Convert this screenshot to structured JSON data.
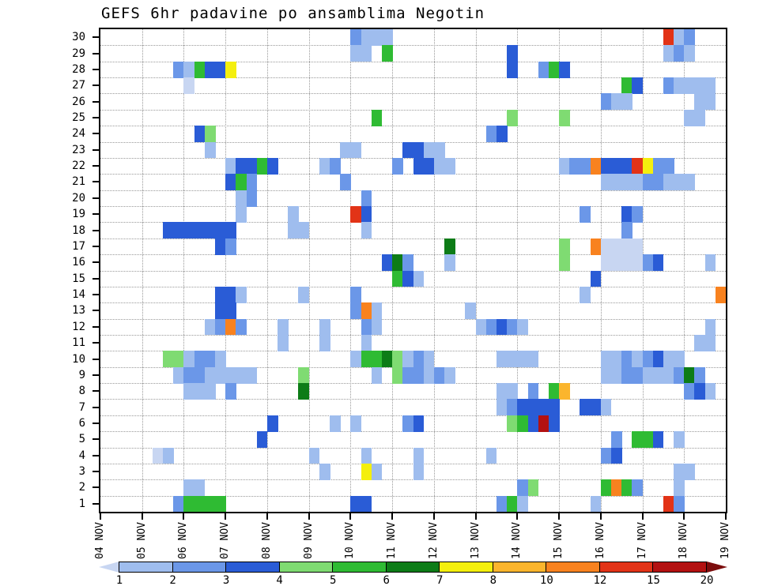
{
  "title": "GEFS 6hr padavine po ansamblima Negotin",
  "chart_data": {
    "type": "heatmap",
    "title": "GEFS 6hr padavine po ansamblima Negotin",
    "rows": 30,
    "columns": 60,
    "steps_per_day": 4,
    "x_labels": [
      "04 NOV",
      "05 NOV",
      "06 NOV",
      "07 NOV",
      "08 NOV",
      "09 NOV",
      "10 NOV",
      "11 NOV",
      "12 NOV",
      "13 NOV",
      "14 NOV",
      "15 NOV",
      "16 NOV",
      "17 NOV",
      "18 NOV",
      "19 NOV"
    ],
    "y_labels": [
      "30",
      "29",
      "28",
      "27",
      "26",
      "25",
      "24",
      "23",
      "22",
      "21",
      "20",
      "19",
      "18",
      "17",
      "16",
      "15",
      "14",
      "13",
      "12",
      "11",
      "10",
      "9",
      "8",
      "7",
      "6",
      "5",
      "4",
      "3",
      "2",
      "1"
    ],
    "legend": {
      "labels": [
        "1",
        "2",
        "3",
        "4",
        "5",
        "6",
        "7",
        "8",
        "10",
        "12",
        "15",
        "20"
      ],
      "palette": [
        "#c8d6f2",
        "#9fbdee",
        "#6b97e8",
        "#2a5cd6",
        "#7fdb72",
        "#2fbb33",
        "#0d7c17",
        "#f4ef0e",
        "#fbb52d",
        "#f8821f",
        "#e23317",
        "#b31111",
        "#7c0d0d"
      ],
      "grid_color": "#999999",
      "frame_color": "#000000"
    },
    "cells": [
      [
        30,
        24,
        2
      ],
      [
        30,
        25,
        1
      ],
      [
        30,
        26,
        1
      ],
      [
        30,
        27,
        1
      ],
      [
        30,
        54,
        10
      ],
      [
        30,
        55,
        1
      ],
      [
        30,
        56,
        2
      ],
      [
        29,
        24,
        1
      ],
      [
        29,
        25,
        1
      ],
      [
        29,
        27,
        5
      ],
      [
        29,
        39,
        3
      ],
      [
        29,
        54,
        1
      ],
      [
        29,
        55,
        2
      ],
      [
        29,
        56,
        1
      ],
      [
        28,
        7,
        2
      ],
      [
        28,
        8,
        1
      ],
      [
        28,
        9,
        5
      ],
      [
        28,
        10,
        3
      ],
      [
        28,
        11,
        3
      ],
      [
        28,
        12,
        7
      ],
      [
        28,
        39,
        3
      ],
      [
        28,
        42,
        2
      ],
      [
        28,
        43,
        5
      ],
      [
        28,
        44,
        3
      ],
      [
        27,
        8,
        0
      ],
      [
        27,
        50,
        5
      ],
      [
        27,
        51,
        3
      ],
      [
        27,
        54,
        2
      ],
      [
        27,
        55,
        1
      ],
      [
        27,
        56,
        1
      ],
      [
        27,
        57,
        1
      ],
      [
        27,
        58,
        1
      ],
      [
        26,
        48,
        2
      ],
      [
        26,
        49,
        1
      ],
      [
        26,
        50,
        1
      ],
      [
        26,
        57,
        1
      ],
      [
        26,
        58,
        1
      ],
      [
        25,
        26,
        5
      ],
      [
        25,
        39,
        4
      ],
      [
        25,
        44,
        4
      ],
      [
        25,
        56,
        1
      ],
      [
        25,
        57,
        1
      ],
      [
        24,
        9,
        3
      ],
      [
        24,
        10,
        4
      ],
      [
        24,
        37,
        2
      ],
      [
        24,
        38,
        3
      ],
      [
        23,
        10,
        1
      ],
      [
        23,
        23,
        1
      ],
      [
        23,
        24,
        1
      ],
      [
        23,
        29,
        3
      ],
      [
        23,
        30,
        3
      ],
      [
        23,
        31,
        1
      ],
      [
        23,
        32,
        1
      ],
      [
        22,
        12,
        1
      ],
      [
        22,
        13,
        3
      ],
      [
        22,
        14,
        3
      ],
      [
        22,
        15,
        5
      ],
      [
        22,
        16,
        3
      ],
      [
        22,
        21,
        1
      ],
      [
        22,
        22,
        2
      ],
      [
        22,
        28,
        2
      ],
      [
        22,
        30,
        3
      ],
      [
        22,
        31,
        3
      ],
      [
        22,
        32,
        1
      ],
      [
        22,
        33,
        1
      ],
      [
        22,
        44,
        1
      ],
      [
        22,
        45,
        2
      ],
      [
        22,
        46,
        2
      ],
      [
        22,
        47,
        9
      ],
      [
        22,
        48,
        3
      ],
      [
        22,
        49,
        3
      ],
      [
        22,
        50,
        3
      ],
      [
        22,
        51,
        10
      ],
      [
        22,
        52,
        7
      ],
      [
        22,
        53,
        2
      ],
      [
        22,
        54,
        2
      ],
      [
        21,
        12,
        3
      ],
      [
        21,
        13,
        5
      ],
      [
        21,
        14,
        2
      ],
      [
        21,
        23,
        2
      ],
      [
        21,
        48,
        1
      ],
      [
        21,
        49,
        1
      ],
      [
        21,
        50,
        1
      ],
      [
        21,
        51,
        1
      ],
      [
        21,
        52,
        2
      ],
      [
        21,
        53,
        2
      ],
      [
        21,
        54,
        1
      ],
      [
        21,
        55,
        1
      ],
      [
        21,
        56,
        1
      ],
      [
        20,
        13,
        1
      ],
      [
        20,
        14,
        2
      ],
      [
        20,
        25,
        2
      ],
      [
        19,
        13,
        1
      ],
      [
        19,
        18,
        1
      ],
      [
        19,
        24,
        10
      ],
      [
        19,
        25,
        3
      ],
      [
        19,
        46,
        2
      ],
      [
        19,
        50,
        3
      ],
      [
        19,
        51,
        2
      ],
      [
        18,
        6,
        3
      ],
      [
        18,
        7,
        3
      ],
      [
        18,
        8,
        3
      ],
      [
        18,
        9,
        3
      ],
      [
        18,
        10,
        3
      ],
      [
        18,
        11,
        3
      ],
      [
        18,
        12,
        3
      ],
      [
        18,
        18,
        1
      ],
      [
        18,
        19,
        1
      ],
      [
        18,
        25,
        1
      ],
      [
        18,
        50,
        2
      ],
      [
        17,
        11,
        3
      ],
      [
        17,
        12,
        2
      ],
      [
        17,
        33,
        6
      ],
      [
        17,
        44,
        4
      ],
      [
        17,
        47,
        9
      ],
      [
        17,
        48,
        0
      ],
      [
        17,
        49,
        0
      ],
      [
        17,
        50,
        0
      ],
      [
        17,
        51,
        0
      ],
      [
        16,
        27,
        3
      ],
      [
        16,
        28,
        6
      ],
      [
        16,
        29,
        2
      ],
      [
        16,
        33,
        1
      ],
      [
        16,
        44,
        4
      ],
      [
        16,
        48,
        0
      ],
      [
        16,
        49,
        0
      ],
      [
        16,
        50,
        0
      ],
      [
        16,
        51,
        0
      ],
      [
        16,
        52,
        2
      ],
      [
        16,
        53,
        3
      ],
      [
        16,
        58,
        1
      ],
      [
        15,
        28,
        5
      ],
      [
        15,
        29,
        3
      ],
      [
        15,
        30,
        1
      ],
      [
        15,
        47,
        3
      ],
      [
        14,
        11,
        3
      ],
      [
        14,
        12,
        3
      ],
      [
        14,
        13,
        1
      ],
      [
        14,
        19,
        1
      ],
      [
        14,
        24,
        2
      ],
      [
        14,
        46,
        1
      ],
      [
        14,
        59,
        9
      ],
      [
        13,
        11,
        3
      ],
      [
        13,
        12,
        3
      ],
      [
        13,
        24,
        2
      ],
      [
        13,
        25,
        9
      ],
      [
        13,
        26,
        1
      ],
      [
        13,
        35,
        1
      ],
      [
        12,
        10,
        1
      ],
      [
        12,
        11,
        2
      ],
      [
        12,
        12,
        9
      ],
      [
        12,
        13,
        2
      ],
      [
        12,
        17,
        1
      ],
      [
        12,
        21,
        1
      ],
      [
        12,
        25,
        2
      ],
      [
        12,
        26,
        1
      ],
      [
        12,
        36,
        1
      ],
      [
        12,
        37,
        2
      ],
      [
        12,
        38,
        3
      ],
      [
        12,
        39,
        2
      ],
      [
        12,
        40,
        1
      ],
      [
        12,
        58,
        1
      ],
      [
        11,
        17,
        1
      ],
      [
        11,
        21,
        1
      ],
      [
        11,
        25,
        1
      ],
      [
        11,
        57,
        1
      ],
      [
        11,
        58,
        1
      ],
      [
        10,
        6,
        4
      ],
      [
        10,
        7,
        4
      ],
      [
        10,
        8,
        1
      ],
      [
        10,
        9,
        2
      ],
      [
        10,
        10,
        2
      ],
      [
        10,
        11,
        1
      ],
      [
        10,
        24,
        1
      ],
      [
        10,
        25,
        5
      ],
      [
        10,
        26,
        5
      ],
      [
        10,
        27,
        6
      ],
      [
        10,
        28,
        4
      ],
      [
        10,
        29,
        1
      ],
      [
        10,
        30,
        2
      ],
      [
        10,
        31,
        1
      ],
      [
        10,
        38,
        1
      ],
      [
        10,
        39,
        1
      ],
      [
        10,
        40,
        1
      ],
      [
        10,
        41,
        1
      ],
      [
        10,
        48,
        1
      ],
      [
        10,
        49,
        1
      ],
      [
        10,
        50,
        2
      ],
      [
        10,
        51,
        1
      ],
      [
        10,
        52,
        2
      ],
      [
        10,
        53,
        3
      ],
      [
        10,
        54,
        1
      ],
      [
        10,
        55,
        1
      ],
      [
        9,
        7,
        1
      ],
      [
        9,
        8,
        2
      ],
      [
        9,
        9,
        2
      ],
      [
        9,
        10,
        1
      ],
      [
        9,
        11,
        1
      ],
      [
        9,
        12,
        1
      ],
      [
        9,
        13,
        1
      ],
      [
        9,
        14,
        1
      ],
      [
        9,
        19,
        4
      ],
      [
        9,
        26,
        1
      ],
      [
        9,
        28,
        4
      ],
      [
        9,
        29,
        2
      ],
      [
        9,
        30,
        2
      ],
      [
        9,
        31,
        1
      ],
      [
        9,
        32,
        2
      ],
      [
        9,
        33,
        1
      ],
      [
        9,
        48,
        1
      ],
      [
        9,
        49,
        1
      ],
      [
        9,
        50,
        2
      ],
      [
        9,
        51,
        2
      ],
      [
        9,
        52,
        1
      ],
      [
        9,
        53,
        1
      ],
      [
        9,
        54,
        1
      ],
      [
        9,
        55,
        2
      ],
      [
        9,
        56,
        6
      ],
      [
        9,
        57,
        2
      ],
      [
        8,
        8,
        1
      ],
      [
        8,
        9,
        1
      ],
      [
        8,
        10,
        1
      ],
      [
        8,
        12,
        2
      ],
      [
        8,
        19,
        6
      ],
      [
        8,
        38,
        1
      ],
      [
        8,
        39,
        1
      ],
      [
        8,
        41,
        2
      ],
      [
        8,
        43,
        5
      ],
      [
        8,
        44,
        8
      ],
      [
        8,
        56,
        2
      ],
      [
        8,
        57,
        3
      ],
      [
        8,
        58,
        1
      ],
      [
        7,
        38,
        1
      ],
      [
        7,
        39,
        2
      ],
      [
        7,
        40,
        3
      ],
      [
        7,
        41,
        3
      ],
      [
        7,
        42,
        3
      ],
      [
        7,
        43,
        3
      ],
      [
        7,
        46,
        3
      ],
      [
        7,
        47,
        3
      ],
      [
        7,
        48,
        1
      ],
      [
        6,
        16,
        3
      ],
      [
        6,
        22,
        1
      ],
      [
        6,
        24,
        1
      ],
      [
        6,
        29,
        2
      ],
      [
        6,
        30,
        3
      ],
      [
        6,
        39,
        4
      ],
      [
        6,
        40,
        5
      ],
      [
        6,
        41,
        3
      ],
      [
        6,
        42,
        11
      ],
      [
        6,
        43,
        3
      ],
      [
        5,
        15,
        3
      ],
      [
        5,
        49,
        2
      ],
      [
        5,
        51,
        5
      ],
      [
        5,
        52,
        5
      ],
      [
        5,
        53,
        3
      ],
      [
        5,
        55,
        1
      ],
      [
        4,
        5,
        0
      ],
      [
        4,
        6,
        1
      ],
      [
        4,
        20,
        1
      ],
      [
        4,
        25,
        1
      ],
      [
        4,
        30,
        1
      ],
      [
        4,
        37,
        1
      ],
      [
        4,
        48,
        2
      ],
      [
        4,
        49,
        3
      ],
      [
        3,
        21,
        1
      ],
      [
        3,
        25,
        7
      ],
      [
        3,
        26,
        1
      ],
      [
        3,
        30,
        1
      ],
      [
        3,
        55,
        1
      ],
      [
        3,
        56,
        1
      ],
      [
        2,
        8,
        1
      ],
      [
        2,
        9,
        1
      ],
      [
        2,
        40,
        2
      ],
      [
        2,
        41,
        4
      ],
      [
        2,
        48,
        5
      ],
      [
        2,
        49,
        9
      ],
      [
        2,
        50,
        5
      ],
      [
        2,
        51,
        2
      ],
      [
        2,
        55,
        1
      ],
      [
        1,
        7,
        2
      ],
      [
        1,
        8,
        5
      ],
      [
        1,
        9,
        5
      ],
      [
        1,
        10,
        5
      ],
      [
        1,
        11,
        5
      ],
      [
        1,
        24,
        3
      ],
      [
        1,
        25,
        3
      ],
      [
        1,
        38,
        2
      ],
      [
        1,
        39,
        5
      ],
      [
        1,
        40,
        1
      ],
      [
        1,
        47,
        1
      ],
      [
        1,
        54,
        10
      ],
      [
        1,
        55,
        2
      ]
    ]
  }
}
